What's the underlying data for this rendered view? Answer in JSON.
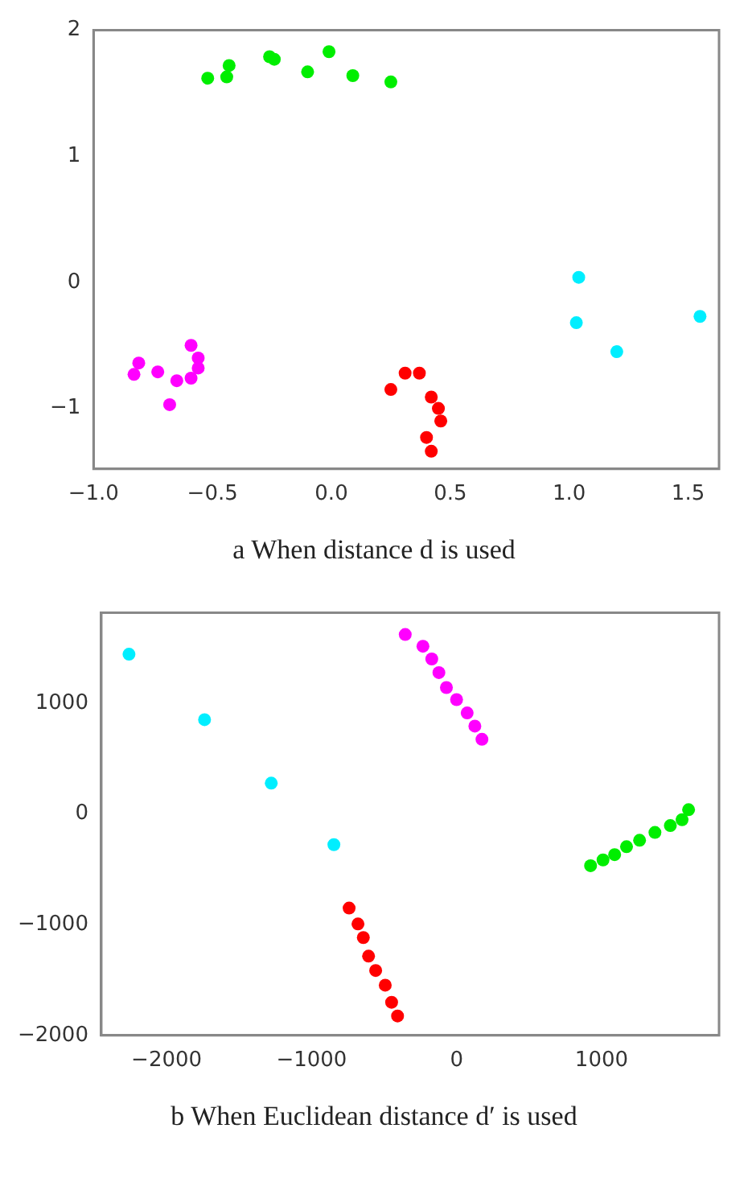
{
  "chart_data": [
    {
      "type": "scatter",
      "xlim": [
        -1.0,
        1.63
      ],
      "ylim": [
        -1.48,
        2.0
      ],
      "xticks": [
        {
          "value": -1.0,
          "label": "−1.0"
        },
        {
          "value": -0.5,
          "label": "−0.5"
        },
        {
          "value": 0,
          "label": "0.0"
        },
        {
          "value": 0.5,
          "label": "0.5"
        },
        {
          "value": 1.0,
          "label": "1.0"
        },
        {
          "value": 1.5,
          "label": "1.5"
        }
      ],
      "yticks": [
        {
          "value": -1,
          "label": "−1"
        },
        0,
        1,
        2
      ],
      "grid": false,
      "legend": false,
      "marker": "circle",
      "annotations": [
        "a  When distance d is used"
      ],
      "series": [
        {
          "color": "#00ee00",
          "x": [
            -0.52,
            -0.44,
            -0.43,
            -0.26,
            -0.24,
            -0.1,
            -0.01,
            0.09,
            0.25
          ],
          "values": [
            1.62,
            1.63,
            1.72,
            1.79,
            1.77,
            1.67,
            1.83,
            1.64,
            1.59
          ]
        },
        {
          "color": "#00eeff",
          "x": [
            1.04,
            1.03,
            1.2,
            1.55
          ],
          "values": [
            0.04,
            -0.32,
            -0.55,
            -0.27
          ]
        },
        {
          "color": "#ff00ff",
          "x": [
            -0.83,
            -0.81,
            -0.73,
            -0.65,
            -0.68,
            -0.59,
            -0.56,
            -0.56,
            -0.59
          ],
          "values": [
            -0.73,
            -0.64,
            -0.71,
            -0.78,
            -0.97,
            -0.5,
            -0.6,
            -0.68,
            -0.76
          ]
        },
        {
          "color": "#ff0000",
          "x": [
            0.25,
            0.31,
            0.37,
            0.42,
            0.45,
            0.46,
            0.4,
            0.42
          ],
          "values": [
            -0.85,
            -0.72,
            -0.72,
            -0.91,
            -1.0,
            -1.1,
            -1.23,
            -1.34
          ]
        }
      ]
    },
    {
      "type": "scatter",
      "xlim": [
        -2450,
        1810
      ],
      "ylim": [
        -2000,
        1815
      ],
      "xticks": [
        {
          "value": -2000,
          "label": "−2000"
        },
        {
          "value": -1000,
          "label": "−1000"
        },
        0,
        1000
      ],
      "yticks": [
        {
          "value": -2000,
          "label": "−2000"
        },
        {
          "value": -1000,
          "label": "−1000"
        },
        0,
        1000
      ],
      "grid": false,
      "legend": false,
      "marker": "circle",
      "annotations": [
        "b  When Euclidean distance d′ is used"
      ],
      "series": [
        {
          "color": "#00eeff",
          "x": [
            -2259,
            -1738,
            -1278,
            -846
          ],
          "values": [
            1441,
            850,
            277,
            -278
          ]
        },
        {
          "color": "#ff00ff",
          "x": [
            -354,
            -232,
            -171,
            -122,
            -70,
            0,
            73,
            126,
            175
          ],
          "values": [
            1619,
            1513,
            1398,
            1275,
            1140,
            1031,
            911,
            792,
            673
          ]
        },
        {
          "color": "#00ee00",
          "x": [
            1600,
            1555,
            1474,
            1368,
            1262,
            1172,
            1090,
            1010,
            924
          ],
          "values": [
            37,
            -53,
            -106,
            -168,
            -239,
            -297,
            -368,
            -416,
            -468
          ]
        },
        {
          "color": "#ff0000",
          "x": [
            -741,
            -680,
            -643,
            -607,
            -558,
            -492,
            -448,
            -407
          ],
          "values": [
            -851,
            -994,
            -1117,
            -1285,
            -1414,
            -1547,
            -1701,
            -1825
          ]
        }
      ]
    }
  ]
}
